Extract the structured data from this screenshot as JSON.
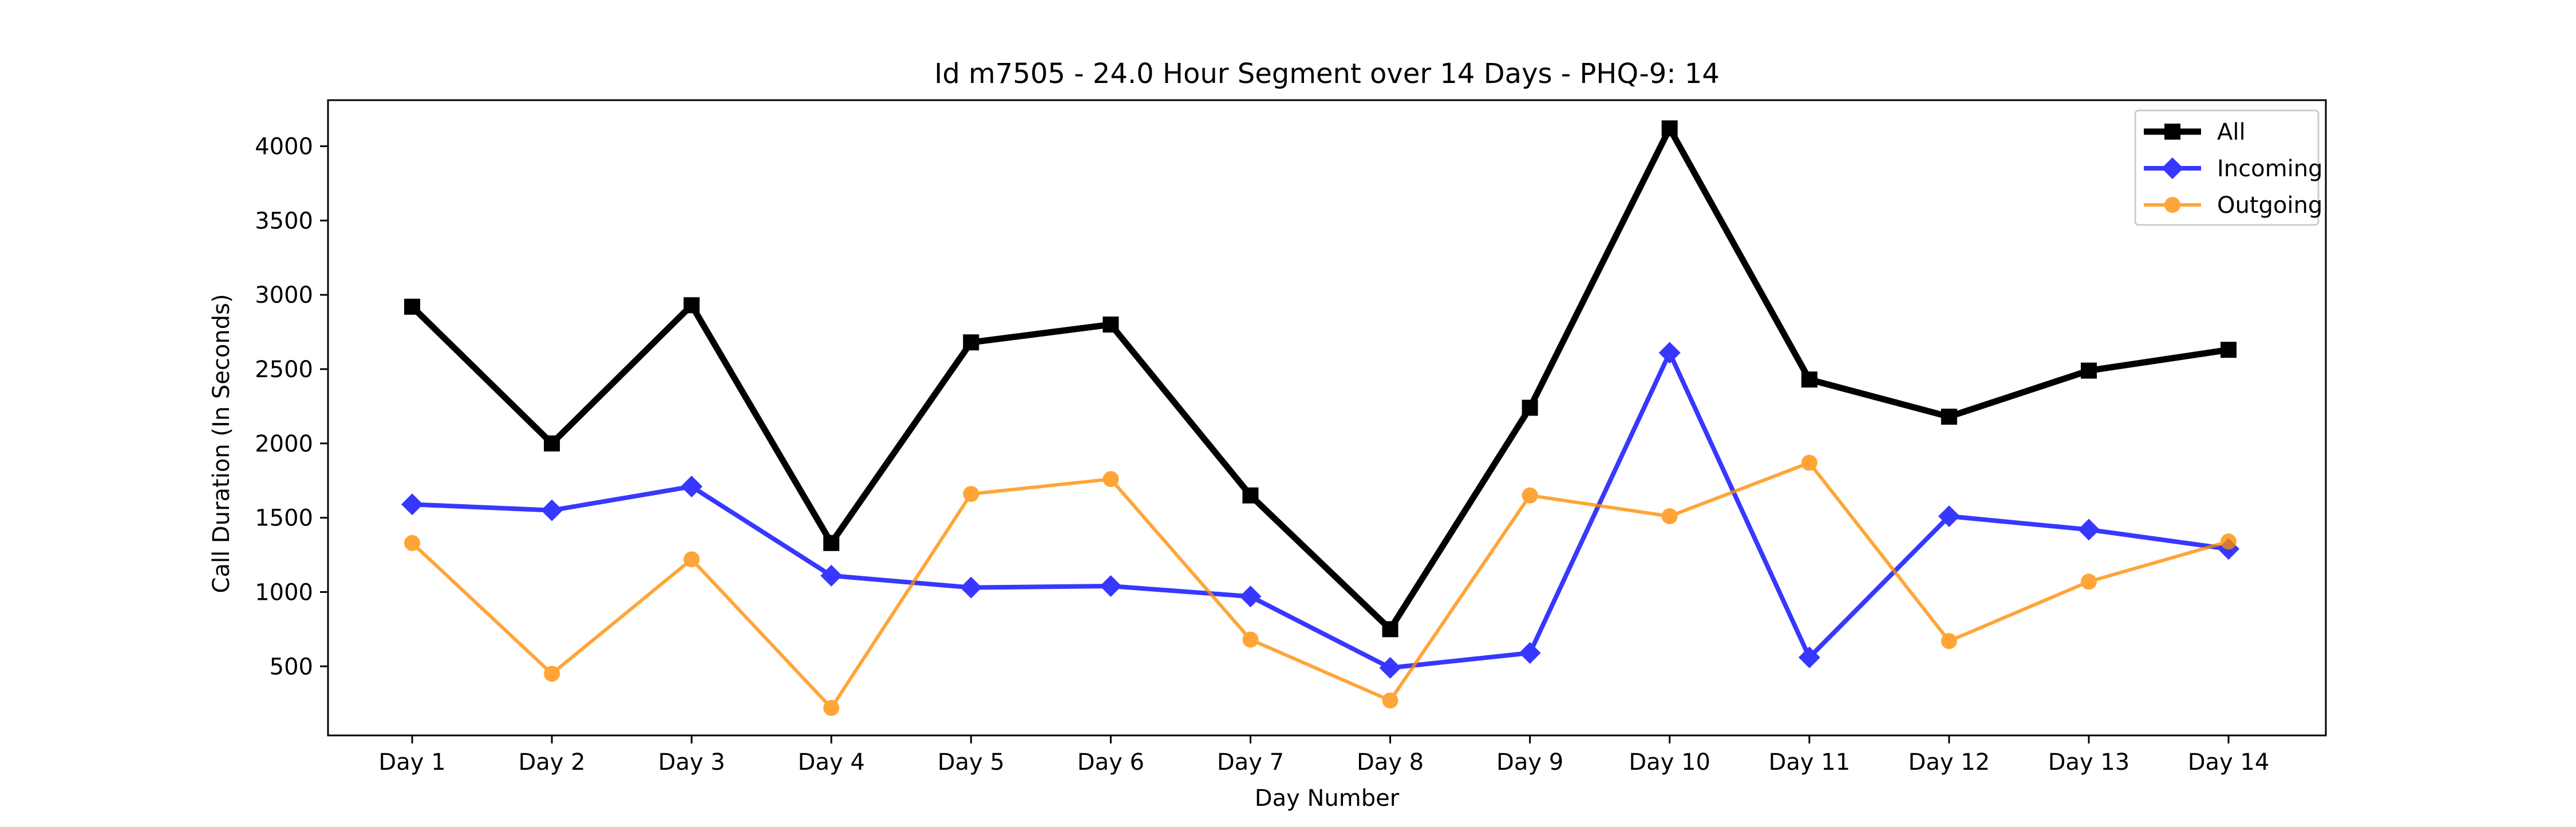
{
  "chart_data": {
    "type": "line",
    "title": "Id m7505 - 24.0 Hour Segment over 14 Days - PHQ-9: 14",
    "xlabel": "Day Number",
    "ylabel": "Call Duration (In Seconds)",
    "categories": [
      "Day 1",
      "Day 2",
      "Day 3",
      "Day 4",
      "Day 5",
      "Day 6",
      "Day 7",
      "Day 8",
      "Day 9",
      "Day 10",
      "Day 11",
      "Day 12",
      "Day 13",
      "Day 14"
    ],
    "yticks": [
      500,
      1000,
      1500,
      2000,
      2500,
      3000,
      3500,
      4000
    ],
    "ylim": [
      35,
      4310
    ],
    "grid": false,
    "legend_position": "top-right",
    "series": [
      {
        "name": "All",
        "color": "#000000",
        "marker": "square",
        "values": [
          2920,
          2000,
          2930,
          1330,
          2680,
          2800,
          1650,
          750,
          2240,
          4120,
          2430,
          2180,
          2490,
          2630
        ]
      },
      {
        "name": "Incoming",
        "color": "#0000ff",
        "marker": "diamond",
        "values": [
          1590,
          1550,
          1710,
          1110,
          1030,
          1040,
          970,
          490,
          590,
          2610,
          560,
          1510,
          1420,
          1290
        ]
      },
      {
        "name": "Outgoing",
        "color": "#ff8c00",
        "marker": "circle",
        "values": [
          1330,
          450,
          1220,
          220,
          1660,
          1760,
          680,
          270,
          1650,
          1510,
          1870,
          670,
          1070,
          1340
        ]
      }
    ]
  }
}
